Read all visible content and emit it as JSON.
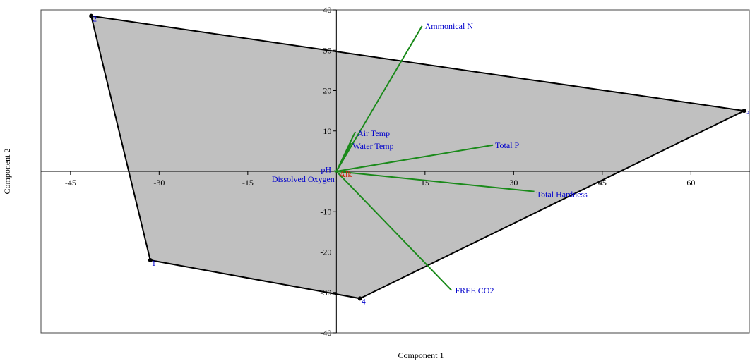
{
  "chart_data": {
    "type": "scatter",
    "xlabel": "Component 1",
    "ylabel": "Component 2",
    "xlim": [
      -50,
      70
    ],
    "ylim": [
      -40,
      40
    ],
    "x_ticks": [
      -45,
      -30,
      -15,
      15,
      30,
      45,
      60
    ],
    "y_ticks": [
      -40,
      -30,
      -20,
      -10,
      10,
      20,
      30,
      40
    ],
    "points": [
      {
        "label": "1",
        "x": -31.5,
        "y": -22
      },
      {
        "label": "2",
        "x": -41.5,
        "y": 38.5
      },
      {
        "label": "3",
        "x": 69,
        "y": 15
      },
      {
        "label": "4",
        "x": 4,
        "y": -31.5
      }
    ],
    "hull_order": [
      "2",
      "3",
      "4",
      "1"
    ],
    "hull_fill": "#c0c0c0",
    "hull_stroke": "#000000",
    "vector_color": "#1a8a1a",
    "vector_label_color": "#0000cc",
    "vectors": [
      {
        "label": "Ammonical N",
        "x": 14.5,
        "y": 36
      },
      {
        "label": "Air Temp",
        "x": 3.2,
        "y": 9.8
      },
      {
        "label": "Water Temp",
        "x": 2.5,
        "y": 7
      },
      {
        "label": "Total P",
        "x": 26.5,
        "y": 6.5
      },
      {
        "label": "Total Hardness",
        "x": 33.5,
        "y": -5
      },
      {
        "label": "FREE CO2",
        "x": 19.5,
        "y": -29.5
      },
      {
        "label": "pH",
        "x": -0.4,
        "y": 0.1
      },
      {
        "label": "Dissolved Oxygen",
        "x": -0.3,
        "y": -0.2
      }
    ],
    "origin_label": "Alk",
    "origin_label_color": "#cc2200"
  }
}
